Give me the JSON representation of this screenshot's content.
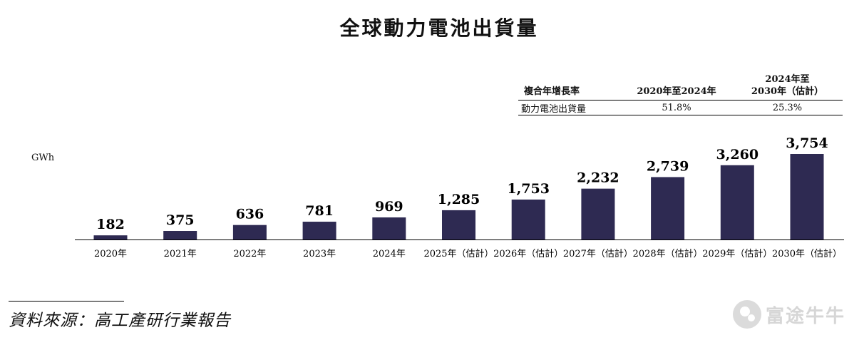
{
  "header": {
    "title": "全球動力電池出貨量"
  },
  "cagr_table": {
    "headers": [
      "複合年增長率",
      "2020年至2024年",
      "2024年至\n2030年（估計）"
    ],
    "row": {
      "label": "動力電池出貨量",
      "values": [
        "51.8%",
        "25.3%"
      ]
    }
  },
  "chart_data": {
    "type": "bar",
    "title": "全球動力電池出貨量",
    "ylabel": "GWh",
    "xlabel": "",
    "categories": [
      "2020年",
      "2021年",
      "2022年",
      "2023年",
      "2024年",
      "2025年（估計）",
      "2026年（估計）",
      "2027年（估計）",
      "2028年（估計）",
      "2029年（估計）",
      "2030年（估計）"
    ],
    "values": [
      182,
      375,
      636,
      781,
      969,
      1285,
      1753,
      2232,
      2739,
      3260,
      3754
    ],
    "value_labels": [
      "182",
      "375",
      "636",
      "781",
      "969",
      "1,285",
      "1,753",
      "2,232",
      "2,739",
      "3,260",
      "3,754"
    ],
    "ylim": [
      0,
      3754
    ],
    "grid": false,
    "bar_color": "#2e2a52"
  },
  "source": {
    "text": "資料來源：高工產研行業報告"
  },
  "watermark": {
    "text": "富途牛牛"
  }
}
